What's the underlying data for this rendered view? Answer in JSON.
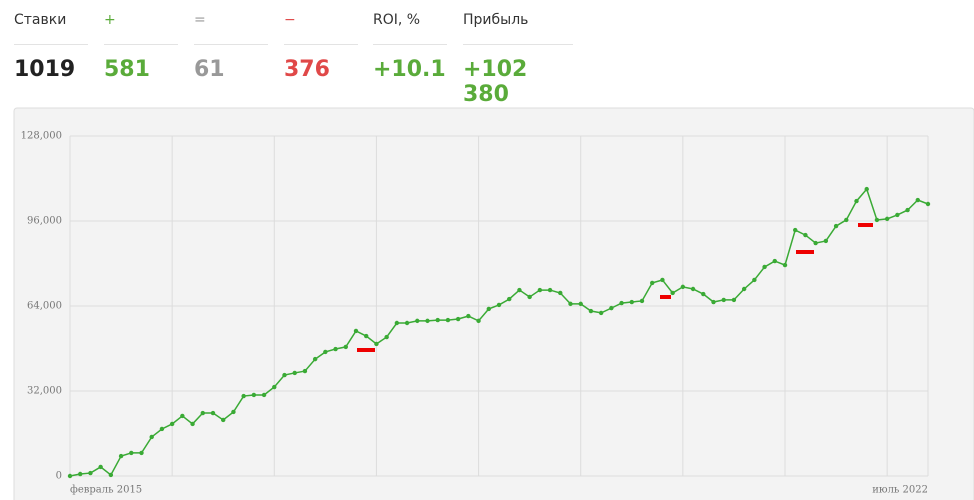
{
  "stats": [
    {
      "label": "Ставки",
      "value": "1019"
    },
    {
      "label": "+",
      "value": "581"
    },
    {
      "label": "=",
      "value": "61"
    },
    {
      "label": "−",
      "value": "376"
    },
    {
      "label": "ROI, %",
      "value": "+10.1"
    },
    {
      "label": "Прибыль",
      "value": "+102 380"
    }
  ],
  "chart_data": {
    "type": "line",
    "categories": [
      "февраль 2015",
      null,
      null,
      null,
      null,
      null,
      null,
      null,
      null,
      null,
      null,
      null,
      null,
      null,
      null,
      null,
      null,
      null,
      null,
      null,
      null,
      null,
      null,
      null,
      null,
      null,
      null,
      null,
      null,
      null,
      null,
      null,
      null,
      null,
      null,
      null,
      null,
      null,
      null,
      null,
      null,
      null,
      null,
      null,
      null,
      null,
      null,
      null,
      null,
      null,
      null,
      null,
      null,
      null,
      null,
      null,
      null,
      null,
      null,
      null,
      null,
      null,
      null,
      null,
      null,
      null,
      null,
      null,
      null,
      null,
      null,
      null,
      null,
      null,
      null,
      null,
      null,
      null,
      null,
      null,
      null,
      null,
      null,
      null,
      "июль 2022"
    ],
    "series": [
      {
        "color": "#3aaa35",
        "values": [
          0,
          750,
          1100,
          3400,
          400,
          7500,
          8700,
          8700,
          14700,
          17700,
          19600,
          22600,
          19600,
          23700,
          23700,
          21100,
          24100,
          30100,
          30500,
          30500,
          33500,
          38000,
          38800,
          39500,
          44000,
          46700,
          47800,
          48600,
          54600,
          52700,
          49700,
          52300,
          57600,
          57600,
          58400,
          58400,
          58700,
          58700,
          59100,
          60200,
          58400,
          62900,
          64400,
          66600,
          70000,
          67400,
          70000,
          70000,
          68900,
          64800,
          64800,
          62100,
          61400,
          63200,
          65100,
          65500,
          65900,
          72700,
          73800,
          68900,
          71200,
          70400,
          68500,
          65500,
          66300,
          66300,
          70400,
          73800,
          78700,
          80900,
          79400,
          92600,
          90700,
          87700,
          88500,
          94100,
          96400,
          103500,
          108000,
          96400,
          96800,
          98300,
          100100,
          103900,
          102400
        ]
      }
    ],
    "ylim": [
      0,
      128000
    ],
    "yticks": [
      0,
      {
        "value": 32000,
        "label": "32,000"
      },
      {
        "value": 64000,
        "label": "64,000"
      },
      {
        "value": 96000,
        "label": "96,000"
      },
      {
        "value": 128000,
        "label": "128,000"
      }
    ],
    "grid": true
  }
}
